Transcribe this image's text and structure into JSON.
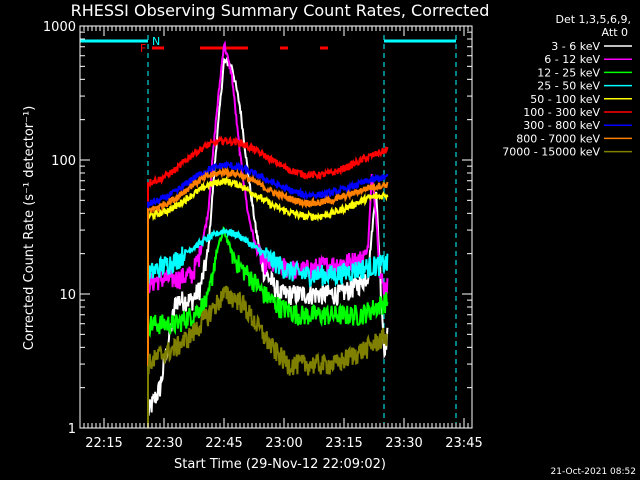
{
  "chart_data": {
    "type": "line",
    "title": "RHESSI Observing Summary Count Rates, Corrected",
    "xlabel": "Start Time (29-Nov-12 22:09:02)",
    "ylabel": "Corrected Count Rate (s⁻¹ detector⁻¹)",
    "yscale": "log",
    "ylim": [
      1,
      1000
    ],
    "xlim_minutes": [
      0,
      98
    ],
    "x_tick_labels": [
      "22:15",
      "22:30",
      "22:45",
      "23:00",
      "23:15",
      "23:30",
      "23:45"
    ],
    "x_tick_minutes": [
      6,
      21,
      36,
      51,
      66,
      81,
      96
    ],
    "y_tick_labels": [
      "1",
      "10",
      "100",
      "1000"
    ],
    "y_tick_values": [
      1,
      10,
      100,
      1000
    ],
    "legend_header": "Det 1,3,5,6,9,",
    "legend_att": "Att 0",
    "series": [
      {
        "name": "3 - 6 keV",
        "color": "#ffffff",
        "x": [
          17,
          20,
          24,
          28,
          30,
          32,
          34,
          36,
          38,
          40,
          42,
          44,
          46,
          50,
          55,
          60,
          65,
          70,
          72,
          74,
          76,
          77
        ],
        "values": [
          1.3,
          2,
          9,
          9,
          11,
          20,
          120,
          550,
          500,
          250,
          80,
          30,
          15,
          10,
          10,
          10,
          10,
          12,
          14,
          60,
          4,
          5
        ]
      },
      {
        "name": "6 - 12 keV",
        "color": "#ff00ff",
        "x": [
          17,
          20,
          24,
          28,
          30,
          32,
          34,
          36,
          38,
          40,
          42,
          44,
          46,
          50,
          55,
          60,
          65,
          70,
          72,
          73,
          74,
          75,
          76,
          77
        ],
        "values": [
          12,
          13,
          13,
          14,
          20,
          40,
          200,
          750,
          420,
          110,
          40,
          22,
          17,
          16,
          15,
          16,
          17,
          18,
          22,
          80,
          40,
          14,
          11,
          12
        ]
      },
      {
        "name": "12 - 25 keV",
        "color": "#00ff00",
        "x": [
          17,
          20,
          24,
          28,
          32,
          34,
          36,
          38,
          40,
          42,
          44,
          46,
          50,
          55,
          60,
          65,
          70,
          74,
          77
        ],
        "values": [
          6,
          6,
          6,
          7,
          9,
          20,
          30,
          20,
          16,
          14,
          12,
          10,
          8,
          7,
          7,
          7,
          7,
          8,
          9
        ]
      },
      {
        "name": "25 - 50 keV",
        "color": "#00ffff",
        "x": [
          17,
          20,
          24,
          28,
          32,
          36,
          40,
          44,
          48,
          52,
          56,
          60,
          64,
          68,
          72,
          77
        ],
        "values": [
          14,
          16,
          18,
          22,
          26,
          30,
          27,
          22,
          18,
          15,
          14,
          14,
          14,
          15,
          16,
          17
        ]
      },
      {
        "name": "50 - 100 keV",
        "color": "#ffff00",
        "x": [
          17,
          20,
          24,
          28,
          32,
          36,
          40,
          44,
          48,
          52,
          56,
          60,
          64,
          68,
          72,
          77
        ],
        "values": [
          38,
          40,
          45,
          55,
          65,
          70,
          65,
          55,
          46,
          41,
          38,
          38,
          41,
          46,
          52,
          55
        ]
      },
      {
        "name": "100 - 300 keV",
        "color": "#ff0000",
        "x": [
          17,
          20,
          24,
          28,
          32,
          36,
          40,
          44,
          48,
          52,
          56,
          60,
          64,
          68,
          72,
          77
        ],
        "values": [
          68,
          72,
          85,
          110,
          130,
          140,
          135,
          118,
          100,
          85,
          78,
          77,
          82,
          92,
          105,
          120
        ]
      },
      {
        "name": "300 - 800 keV",
        "color": "#0000ff",
        "x": [
          17,
          20,
          24,
          28,
          32,
          36,
          40,
          44,
          48,
          52,
          56,
          60,
          64,
          68,
          72,
          77
        ],
        "values": [
          47,
          50,
          58,
          72,
          85,
          92,
          88,
          78,
          68,
          60,
          55,
          55,
          58,
          63,
          70,
          75
        ]
      },
      {
        "name": "800 - 7000 keV",
        "color": "#ff8000",
        "x": [
          17,
          20,
          24,
          28,
          32,
          36,
          40,
          44,
          48,
          52,
          56,
          60,
          64,
          68,
          72,
          77
        ],
        "values": [
          42,
          45,
          52,
          65,
          76,
          82,
          78,
          68,
          58,
          52,
          48,
          48,
          51,
          56,
          62,
          66
        ]
      },
      {
        "name": "7000 - 15000 keV",
        "color": "#808000",
        "x": [
          17,
          20,
          24,
          28,
          32,
          36,
          40,
          44,
          48,
          52,
          56,
          60,
          64,
          68,
          72,
          77
        ],
        "values": [
          3,
          3.5,
          4,
          5,
          7,
          10,
          9,
          6,
          4,
          3,
          3,
          3,
          3,
          3.5,
          4,
          5
        ]
      }
    ],
    "annotations": {
      "flare_flag_label": "F",
      "night_label": "N",
      "flare_flag_intervals_minutes": [
        [
          18,
          21
        ],
        [
          30,
          42
        ],
        [
          50,
          52
        ],
        [
          60,
          62
        ]
      ],
      "night_intervals_minutes": [
        [
          0,
          17
        ],
        [
          76,
          94
        ]
      ],
      "dashed_lines_minutes": [
        17,
        76,
        94
      ]
    },
    "footer_date": "21-Oct-2021 08:52"
  }
}
